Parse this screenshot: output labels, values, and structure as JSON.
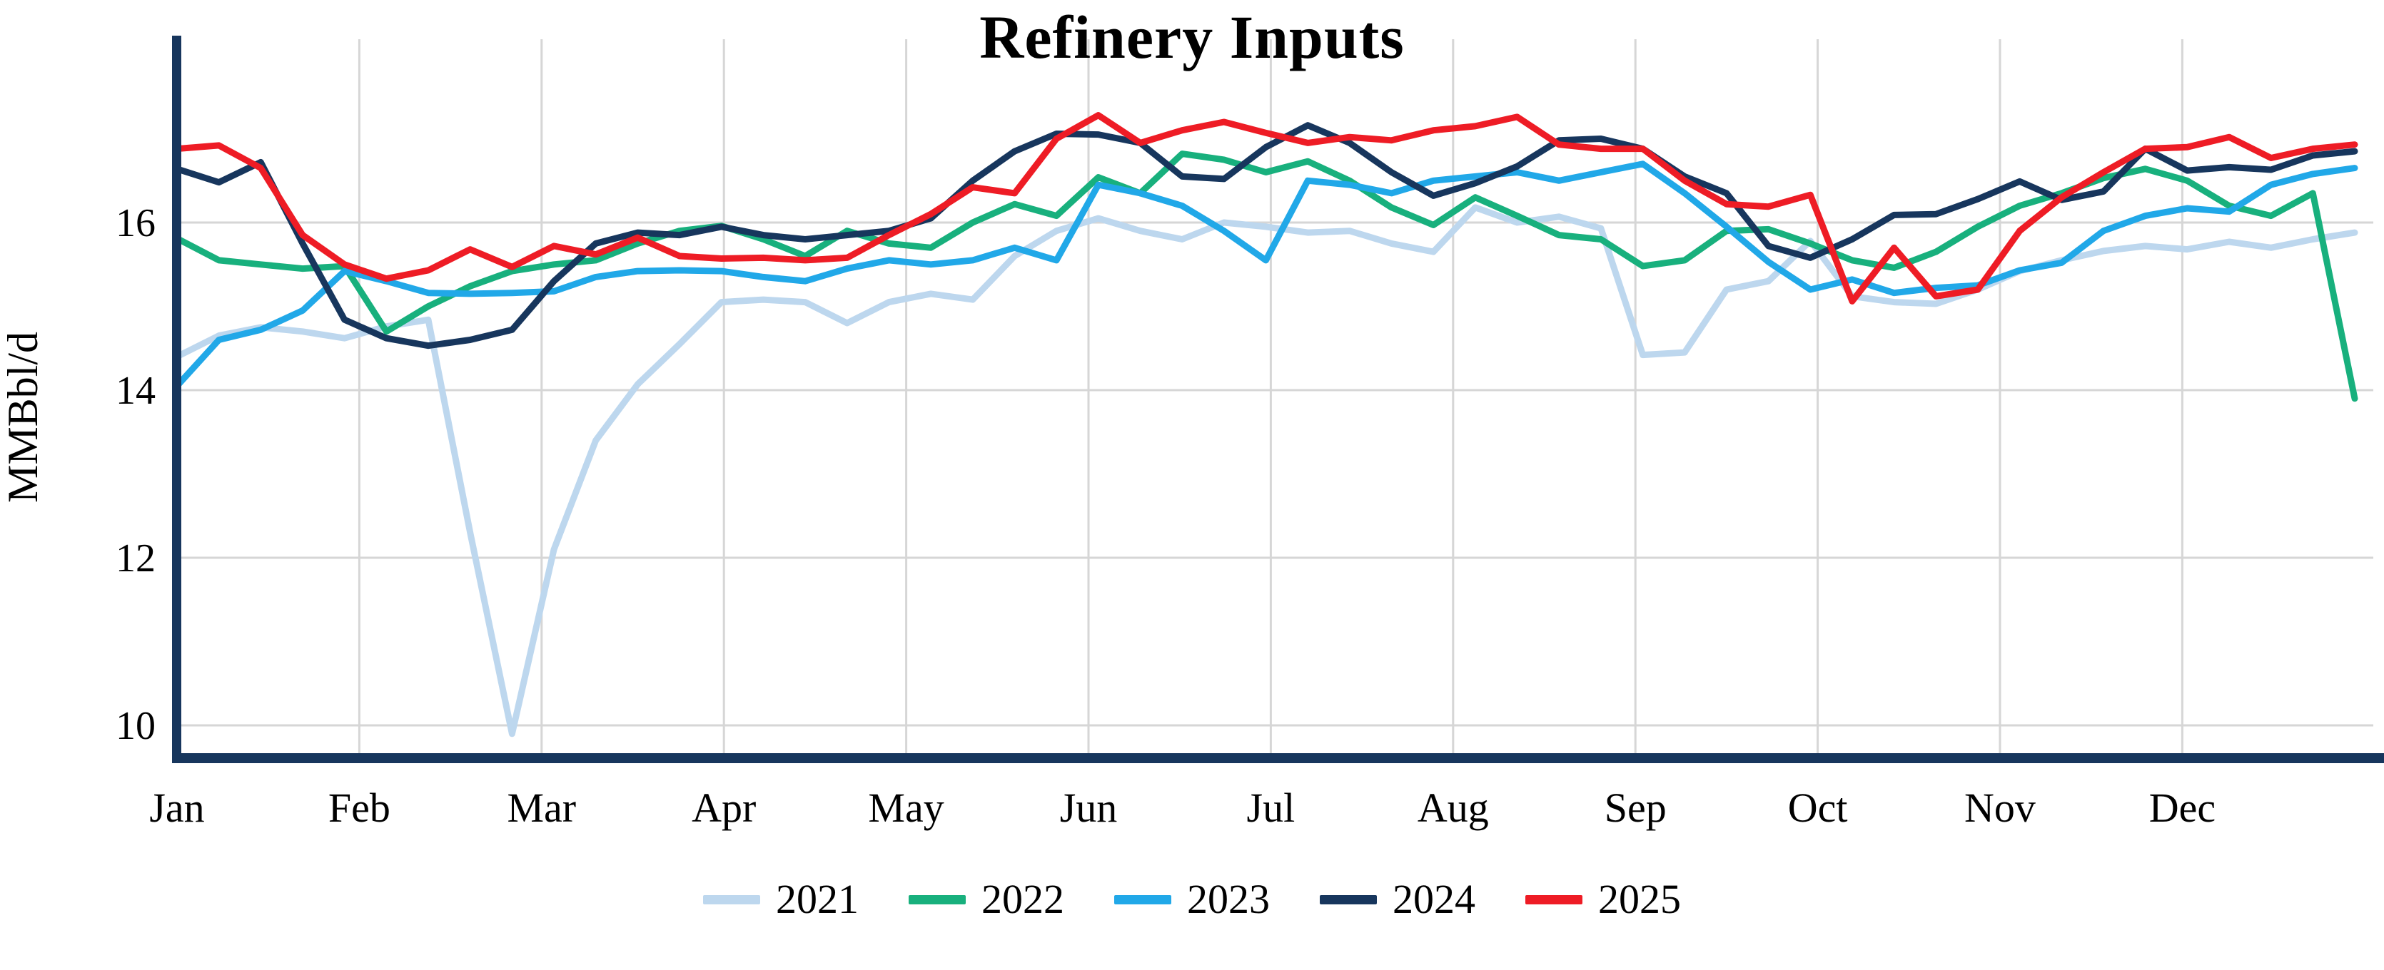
{
  "chart_data": {
    "type": "line",
    "title": "Refinery Inputs",
    "ylabel": "MMBbl/d",
    "xlabel": "",
    "x_tick_labels": [
      "Jan",
      "Feb",
      "Mar",
      "Apr",
      "May",
      "Jun",
      "Jul",
      "Aug",
      "Sep",
      "Oct",
      "Nov",
      "Dec"
    ],
    "y_tick_labels": [
      "10",
      "12",
      "14",
      "16"
    ],
    "y_tick_values": [
      10,
      12,
      14,
      16
    ],
    "ylim": [
      9.55,
      18.2
    ],
    "x_unit": "week-of-year",
    "points_per_series": 53,
    "grid": true,
    "legend_position": "bottom",
    "axis_color": "#17365D",
    "grid_color": "#D6D6D6",
    "line_width": 9,
    "series": [
      {
        "name": "2021",
        "color": "#BDD7EE",
        "values": [
          14.4,
          14.65,
          14.75,
          14.7,
          14.62,
          14.76,
          14.84,
          12.3,
          9.9,
          12.1,
          13.4,
          14.07,
          14.55,
          15.05,
          15.08,
          15.05,
          14.8,
          15.05,
          15.15,
          15.08,
          15.6,
          15.9,
          16.05,
          15.9,
          15.8,
          16.0,
          15.95,
          15.88,
          15.9,
          15.75,
          15.65,
          16.18,
          16.0,
          16.07,
          15.93,
          14.42,
          14.45,
          15.2,
          15.3,
          15.78,
          15.12,
          15.05,
          15.03,
          15.2,
          15.42,
          15.55,
          15.66,
          15.72,
          15.68,
          15.77,
          15.7,
          15.8,
          15.88
        ]
      },
      {
        "name": "2022",
        "color": "#18B07D",
        "values": [
          15.81,
          15.55,
          15.5,
          15.45,
          15.48,
          14.7,
          15.0,
          15.24,
          15.42,
          15.5,
          15.55,
          15.75,
          15.9,
          15.96,
          15.8,
          15.6,
          15.9,
          15.75,
          15.7,
          16.0,
          16.22,
          16.08,
          16.54,
          16.35,
          16.82,
          16.75,
          16.6,
          16.73,
          16.5,
          16.18,
          15.97,
          16.3,
          16.08,
          15.85,
          15.8,
          15.48,
          15.55,
          15.9,
          15.92,
          15.75,
          15.55,
          15.46,
          15.65,
          15.95,
          16.2,
          16.35,
          16.53,
          16.64,
          16.5,
          16.2,
          16.08,
          16.35,
          13.9
        ]
      },
      {
        "name": "2023",
        "color": "#21A8E8",
        "values": [
          14.05,
          14.6,
          14.72,
          14.95,
          15.42,
          15.3,
          15.16,
          15.15,
          15.16,
          15.18,
          15.35,
          15.42,
          15.43,
          15.42,
          15.35,
          15.3,
          15.45,
          15.55,
          15.5,
          15.55,
          15.7,
          15.55,
          16.45,
          16.35,
          16.2,
          15.9,
          15.55,
          16.5,
          16.45,
          16.35,
          16.5,
          16.55,
          16.6,
          16.5,
          16.6,
          16.7,
          16.35,
          15.95,
          15.53,
          15.2,
          15.32,
          15.16,
          15.22,
          15.25,
          15.43,
          15.52,
          15.9,
          16.08,
          16.17,
          16.13,
          16.45,
          16.58,
          16.65
        ]
      },
      {
        "name": "2024",
        "color": "#17365D",
        "values": [
          16.64,
          16.48,
          16.72,
          15.75,
          14.84,
          14.62,
          14.53,
          14.6,
          14.72,
          15.3,
          15.75,
          15.88,
          15.85,
          15.95,
          15.85,
          15.8,
          15.85,
          15.9,
          16.05,
          16.5,
          16.85,
          17.06,
          17.05,
          16.95,
          16.55,
          16.52,
          16.9,
          17.16,
          16.95,
          16.6,
          16.32,
          16.47,
          16.67,
          16.98,
          17.0,
          16.88,
          16.55,
          16.35,
          15.72,
          15.58,
          15.8,
          16.09,
          16.1,
          16.28,
          16.49,
          16.27,
          16.37,
          16.88,
          16.62,
          16.66,
          16.63,
          16.8,
          16.85
        ]
      },
      {
        "name": "2025",
        "color": "#EE1C25",
        "values": [
          16.88,
          16.92,
          16.65,
          15.85,
          15.5,
          15.33,
          15.43,
          15.68,
          15.47,
          15.72,
          15.62,
          15.82,
          15.6,
          15.57,
          15.58,
          15.55,
          15.58,
          15.85,
          16.1,
          16.42,
          16.35,
          17.0,
          17.28,
          16.95,
          17.1,
          17.2,
          17.07,
          16.95,
          17.02,
          16.98,
          17.1,
          17.15,
          17.26,
          16.93,
          16.88,
          16.88,
          16.5,
          16.22,
          16.19,
          16.33,
          15.06,
          15.7,
          15.12,
          15.2,
          15.9,
          16.3,
          16.6,
          16.88,
          16.9,
          17.02,
          16.77,
          16.88,
          16.93
        ]
      }
    ]
  }
}
